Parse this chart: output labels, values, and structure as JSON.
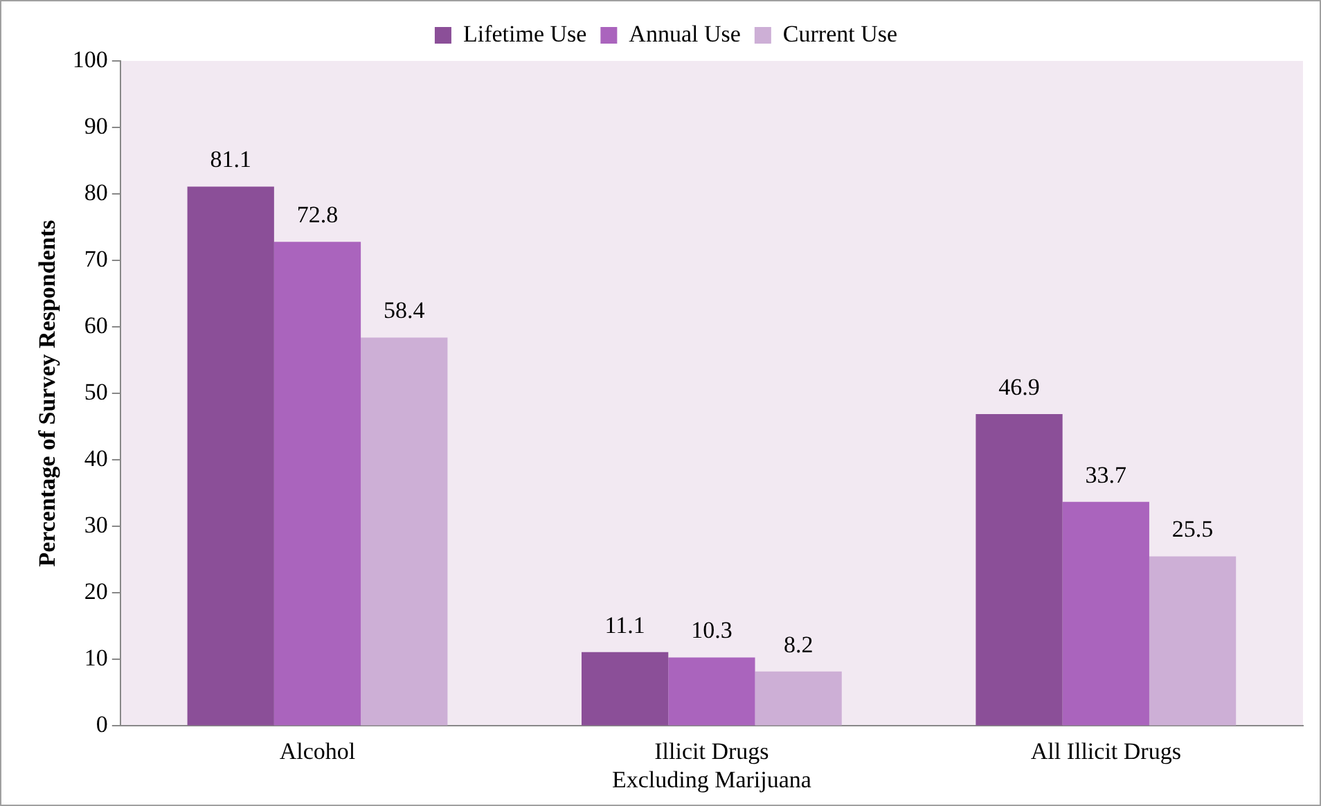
{
  "chart_data": {
    "type": "bar",
    "ylabel": "Percentage of Survey Respondents",
    "categories": [
      "Alcohol",
      "Illicit Drugs\nExcluding Marijuana",
      "All Illicit Drugs"
    ],
    "series": [
      {
        "name": "Lifetime Use",
        "color": "#8b4f98",
        "values": [
          81.1,
          11.1,
          46.9
        ]
      },
      {
        "name": "Annual Use",
        "color": "#aa64bd",
        "values": [
          72.8,
          10.3,
          33.7
        ]
      },
      {
        "name": "Current Use",
        "color": "#cdafd6",
        "values": [
          58.4,
          8.2,
          25.5
        ]
      }
    ],
    "ylim": [
      0,
      100
    ],
    "yticks": [
      0,
      10,
      20,
      30,
      40,
      50,
      60,
      70,
      80,
      90,
      100
    ],
    "grid": false,
    "legend": "top",
    "data_labels": true
  }
}
